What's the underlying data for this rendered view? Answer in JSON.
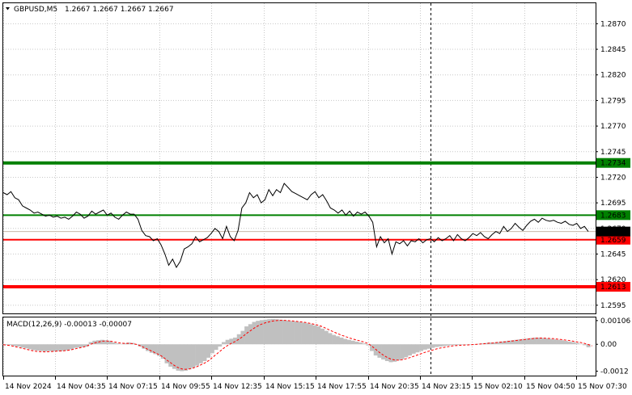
{
  "header": {
    "symbol": "GBPUSD,M5",
    "ohlc": "1.2667 1.2667 1.2667 1.2667"
  },
  "macd": {
    "label": "MACD(12,26,9) -0.00013 -0.00007"
  },
  "colors": {
    "price_line": "#000000",
    "grid": "#c8c8c8",
    "green": "#008000",
    "red": "#ff0000",
    "macd_hist": "#c0c0c0",
    "signal": "#ff0000",
    "current_tag": "#000000"
  },
  "chart_data": [
    {
      "type": "line",
      "title": "GBPUSD,M5",
      "ylim": [
        1.2587,
        1.289
      ],
      "y_ticks": [
        "1.2870",
        "1.2845",
        "1.2820",
        "1.2795",
        "1.2770",
        "1.2745",
        "1.2720",
        "1.2695",
        "1.2670",
        "1.2645",
        "1.2620",
        "1.2595"
      ],
      "x_ticks": [
        "14 Nov 2024",
        "14 Nov 04:35",
        "14 Nov 07:15",
        "14 Nov 09:55",
        "14 Nov 12:35",
        "14 Nov 15:15",
        "14 Nov 17:55",
        "14 Nov 20:35",
        "14 Nov 23:15",
        "15 Nov 02:10",
        "15 Nov 04:50",
        "15 Nov 07:30"
      ],
      "levels": [
        {
          "value": 1.2734,
          "label": "1.2734",
          "color": "#008000",
          "weight": "thick"
        },
        {
          "value": 1.2683,
          "label": "1.2683",
          "color": "#008000",
          "weight": "thin"
        },
        {
          "value": 1.2659,
          "label": "1.2659",
          "color": "#ff0000",
          "weight": "thin"
        },
        {
          "value": 1.2613,
          "label": "1.2613",
          "color": "#ff0000",
          "weight": "thick"
        }
      ],
      "current_price": {
        "value": 1.2667,
        "label": "1.2667"
      },
      "series": [
        {
          "values": [
            1.2705,
            1.2703,
            1.2706,
            1.27,
            1.2698,
            1.2692,
            1.269,
            1.2688,
            1.2685,
            1.2686,
            1.2684,
            1.2682,
            1.2683,
            1.2681,
            1.2682,
            1.268,
            1.2681,
            1.2679,
            1.2682,
            1.2686,
            1.2684,
            1.268,
            1.2682,
            1.2687,
            1.2684,
            1.2686,
            1.2688,
            1.2683,
            1.2685,
            1.2681,
            1.2679,
            1.2683,
            1.2686,
            1.2684,
            1.2684,
            1.2679,
            1.2668,
            1.2663,
            1.2662,
            1.2658,
            1.266,
            1.2654,
            1.2645,
            1.2634,
            1.264,
            1.2632,
            1.2638,
            1.265,
            1.2652,
            1.2655,
            1.2662,
            1.2657,
            1.2659,
            1.2661,
            1.2665,
            1.267,
            1.2667,
            1.266,
            1.2672,
            1.2662,
            1.2658,
            1.2668,
            1.269,
            1.2695,
            1.2705,
            1.27,
            1.2703,
            1.2695,
            1.2698,
            1.2708,
            1.2702,
            1.2708,
            1.2705,
            1.2714,
            1.271,
            1.2706,
            1.2704,
            1.2702,
            1.27,
            1.2698,
            1.2703,
            1.2706,
            1.27,
            1.2703,
            1.2697,
            1.269,
            1.2688,
            1.2685,
            1.2688,
            1.2683,
            1.2687,
            1.2682,
            1.2686,
            1.2684,
            1.2686,
            1.2682,
            1.2676,
            1.2652,
            1.2662,
            1.2656,
            1.266,
            1.2645,
            1.2657,
            1.2655,
            1.2658,
            1.2653,
            1.2658,
            1.2657,
            1.266,
            1.2656,
            1.2659,
            1.266,
            1.2657,
            1.2661,
            1.2658,
            1.266,
            1.2663,
            1.2658,
            1.2664,
            1.266,
            1.2658,
            1.2661,
            1.2665,
            1.2663,
            1.2666,
            1.2662,
            1.266,
            1.2664,
            1.2667,
            1.2665,
            1.2672,
            1.2667,
            1.267,
            1.2675,
            1.2671,
            1.2668,
            1.2673,
            1.2677,
            1.2679,
            1.2676,
            1.268,
            1.2678,
            1.2677,
            1.2678,
            1.2676,
            1.2675,
            1.2677,
            1.2674,
            1.2673,
            1.2675,
            1.267,
            1.2672,
            1.2667
          ]
        }
      ]
    },
    {
      "type": "bar",
      "title": "MACD(12,26,9)",
      "ylim": [
        -0.0014,
        0.0012
      ],
      "y_ticks": [
        "0.00106",
        "0.00",
        "-0.0012"
      ],
      "series": [
        {
          "name": "MACD",
          "values": [
            -2e-05,
            -3e-05,
            -4e-05,
            -8e-05,
            -0.0001,
            -0.00015,
            -0.00018,
            -0.00022,
            -0.00026,
            -0.00028,
            -0.0003,
            -0.00032,
            -0.0003,
            -0.00032,
            -0.0003,
            -0.00031,
            -0.00029,
            -0.00027,
            -0.00022,
            -0.00016,
            -0.00014,
            -0.00012,
            -0.0001,
            0.0001,
            0.00016,
            0.00018,
            0.0002,
            0.00018,
            0.00016,
            8e-05,
            4e-05,
            2e-05,
            5e-05,
            8e-05,
            6e-05,
            0.0,
            -0.0001,
            -0.0002,
            -0.0003,
            -0.00038,
            -0.00044,
            -0.00052,
            -0.00065,
            -0.00085,
            -0.001,
            -0.0011,
            -0.00118,
            -0.0012,
            -0.00118,
            -0.00112,
            -0.00104,
            -0.00095,
            -0.00085,
            -0.00075,
            -0.0006,
            -0.0004,
            -0.00025,
            -0.0001,
            0.0001,
            0.0002,
            0.00025,
            0.0003,
            0.00045,
            0.0006,
            0.0008,
            0.0009,
            0.001,
            0.00105,
            0.00108,
            0.0011,
            0.00112,
            0.00114,
            0.00112,
            0.0011,
            0.00108,
            0.00106,
            0.00104,
            0.00102,
            0.001,
            0.00097,
            0.00094,
            0.0009,
            0.00085,
            0.0008,
            0.0007,
            0.0006,
            0.0005,
            0.00042,
            0.00036,
            0.0003,
            0.00024,
            0.0002,
            0.00016,
            0.00012,
            8e-05,
            4e-05,
            -5e-05,
            -0.0003,
            -0.0005,
            -0.0006,
            -0.00068,
            -0.00075,
            -0.0008,
            -0.00078,
            -0.00072,
            -0.00066,
            -0.00058,
            -0.0005,
            -0.00042,
            -0.00036,
            -0.0003,
            -0.00024,
            -0.0002,
            -0.00016,
            -0.00012,
            -0.0001,
            -8e-05,
            -6e-05,
            -4e-05,
            -4e-05,
            -3e-05,
            -2e-05,
            -1e-05,
            0.0,
            0.0,
            2e-05,
            4e-05,
            6e-05,
            8e-05,
            8e-05,
            0.0001,
            0.00012,
            0.00014,
            0.00016,
            0.00018,
            0.0002,
            0.00022,
            0.00024,
            0.00026,
            0.00028,
            0.0003,
            0.0003,
            0.00028,
            0.00026,
            0.00024,
            0.00022,
            0.0002,
            0.00018,
            0.00015,
            0.00012,
            0.0001,
            6e-05,
            2e-05,
            -4e-05,
            -0.00013
          ]
        },
        {
          "name": "Signal",
          "values": [
            -2e-05,
            -4e-05,
            -6e-05,
            -0.0001,
            -0.00014,
            -0.00018,
            -0.00022,
            -0.00026,
            -0.0003,
            -0.00032,
            -0.00033,
            -0.00034,
            -0.00033,
            -0.00032,
            -0.00031,
            -0.0003,
            -0.00029,
            -0.00027,
            -0.00024,
            -0.0002,
            -0.00016,
            -0.00013,
            -8e-05,
            0.0,
            6e-05,
            0.0001,
            0.00014,
            0.00015,
            0.00014,
            0.00012,
            8e-05,
            5e-05,
            4e-05,
            4e-05,
            3e-05,
            0.0,
            -6e-05,
            -0.00014,
            -0.00022,
            -0.0003,
            -0.00038,
            -0.00046,
            -0.00056,
            -0.0007,
            -0.00082,
            -0.00094,
            -0.00104,
            -0.0011,
            -0.00112,
            -0.0011,
            -0.00106,
            -0.001,
            -0.00092,
            -0.00084,
            -0.00074,
            -0.0006,
            -0.00046,
            -0.00032,
            -0.00018,
            -6e-05,
            4e-05,
            0.00012,
            0.00022,
            0.00034,
            0.00048,
            0.0006,
            0.00072,
            0.00082,
            0.0009,
            0.00096,
            0.001,
            0.00104,
            0.00106,
            0.00107,
            0.00107,
            0.00106,
            0.00105,
            0.00103,
            0.00101,
            0.00099,
            0.00096,
            0.00093,
            0.00089,
            0.00085,
            0.00079,
            0.00071,
            0.00063,
            0.00055,
            0.00048,
            0.00041,
            0.00035,
            0.00029,
            0.00024,
            0.00019,
            0.00015,
            0.0001,
            4e-05,
            -8e-05,
            -0.00022,
            -0.00036,
            -0.00048,
            -0.00058,
            -0.00066,
            -0.0007,
            -0.00071,
            -0.00069,
            -0.00065,
            -0.0006,
            -0.00054,
            -0.00048,
            -0.00042,
            -0.00036,
            -0.00031,
            -0.00026,
            -0.00021,
            -0.00017,
            -0.00014,
            -0.00011,
            -8e-05,
            -6e-05,
            -5e-05,
            -4e-05,
            -3e-05,
            -2e-05,
            -1e-05,
            0.0,
            2e-05,
            3e-05,
            5e-05,
            6e-05,
            8e-05,
            0.0001,
            0.00011,
            0.00013,
            0.00015,
            0.00017,
            0.00019,
            0.00021,
            0.00023,
            0.00025,
            0.00027,
            0.00028,
            0.00028,
            0.00027,
            0.00026,
            0.00025,
            0.00023,
            0.00021,
            0.00019,
            0.00017,
            0.00014,
            0.00011,
            8e-05,
            4e-05,
            -1e-05,
            -7e-05
          ]
        }
      ]
    }
  ]
}
